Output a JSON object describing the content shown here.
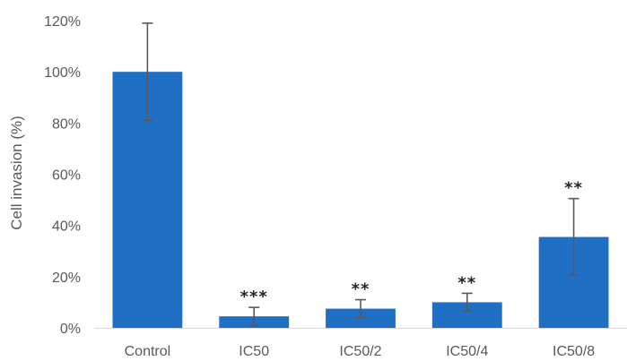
{
  "chart_data": {
    "type": "bar",
    "categories": [
      "Control",
      "IC50",
      "IC50/2",
      "IC50/4",
      "IC50/8"
    ],
    "values": [
      100,
      4.5,
      7.5,
      10,
      35.5
    ],
    "error": [
      19,
      3.5,
      3.5,
      3.5,
      15
    ],
    "significance": [
      "",
      "***",
      "**",
      "**",
      "**"
    ],
    "ylabel": "Cell invasion (%)",
    "xlabel": "",
    "ylim": [
      0,
      120
    ],
    "yticks": [
      0,
      20,
      40,
      60,
      80,
      100,
      120
    ],
    "ytick_labels": [
      "0%",
      "20%",
      "40%",
      "60%",
      "80%",
      "100%",
      "120%"
    ],
    "grid": false,
    "bar_color": "#1f6fc5",
    "error_color": "#595959"
  }
}
